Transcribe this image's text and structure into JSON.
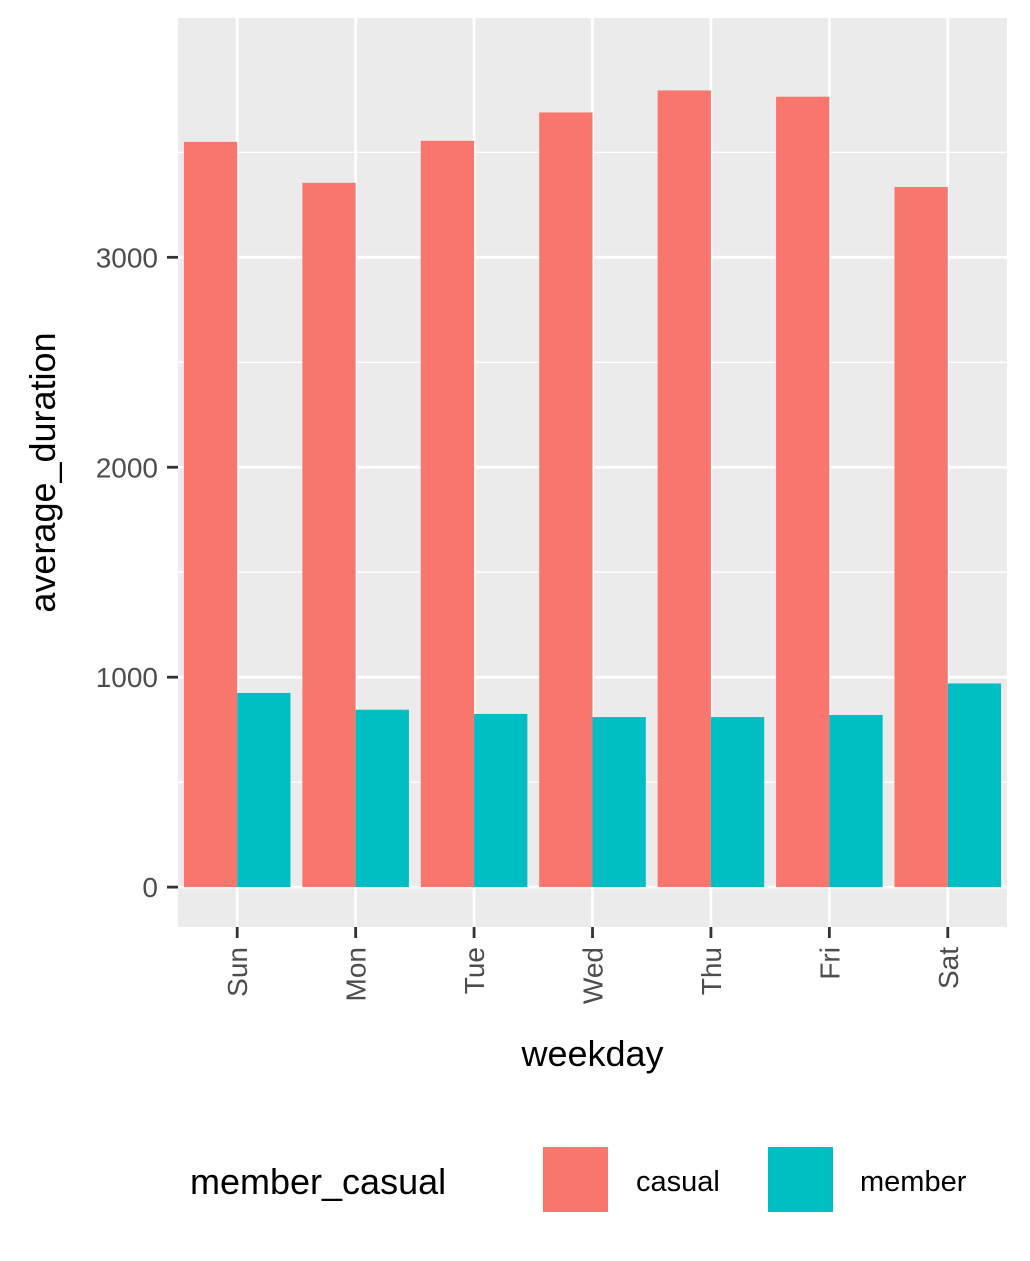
{
  "chart_data": {
    "type": "bar",
    "title": "",
    "xlabel": "weekday",
    "ylabel": "average_duration",
    "categories": [
      "Sun",
      "Mon",
      "Tue",
      "Wed",
      "Thu",
      "Fri",
      "Sat"
    ],
    "series": [
      {
        "name": "casual",
        "color": "#F8766D",
        "values": [
          3550,
          3355,
          3555,
          3690,
          3795,
          3765,
          3335
        ]
      },
      {
        "name": "member",
        "color": "#00BFC4",
        "values": [
          925,
          845,
          825,
          810,
          810,
          820,
          970
        ]
      }
    ],
    "ylim": [
      -190,
      4140
    ],
    "yticks": [
      0,
      1000,
      2000,
      3000
    ],
    "ytick_labels": [
      "0",
      "1000",
      "2000",
      "3000"
    ],
    "grid": true,
    "panel_background": "#EBEBEB",
    "gridline_color": "#FFFFFF",
    "x_tick_rotation": "vertical",
    "legend": {
      "title": "member_casual",
      "position": "bottom",
      "entries": [
        "casual",
        "member"
      ]
    }
  }
}
